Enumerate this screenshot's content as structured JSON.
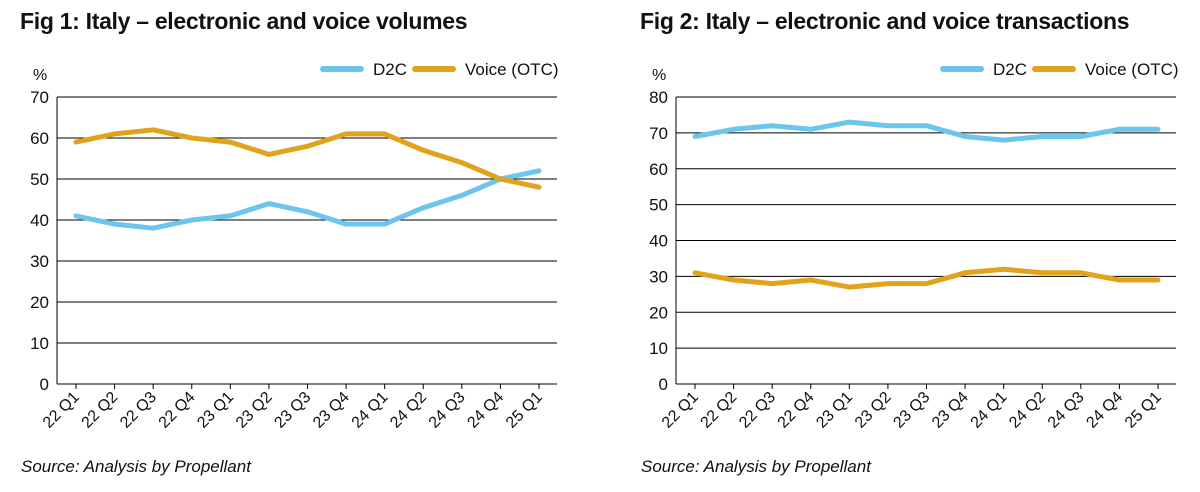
{
  "colors": {
    "d2c": "#6CC5EC",
    "voice": "#E0A31B",
    "grid": "#000000"
  },
  "chart_data": [
    {
      "type": "line",
      "title": "Fig 1: Italy – electronic and voice volumes",
      "source": "Source: Analysis by Propellant",
      "ylabel": "%",
      "ylim": [
        0,
        70
      ],
      "yticks": [
        "0",
        "10",
        "20",
        "30",
        "40",
        "50",
        "60",
        "70"
      ],
      "yticks_values": [
        0,
        10,
        20,
        30,
        40,
        50,
        60,
        70
      ],
      "categories": [
        "22 Q1",
        "22 Q2",
        "22 Q3",
        "22 Q4",
        "23 Q1",
        "23 Q2",
        "23 Q3",
        "23 Q4",
        "24 Q1",
        "24 Q2",
        "24 Q3",
        "24 Q4",
        "25 Q1"
      ],
      "legend_position": "top-right",
      "series": [
        {
          "name": "D2C",
          "color_key": "d2c",
          "values": [
            41,
            39,
            38,
            40,
            41,
            44,
            42,
            39,
            39,
            43,
            46,
            50,
            52
          ]
        },
        {
          "name": "Voice (OTC)",
          "color_key": "voice",
          "values": [
            59,
            61,
            62,
            60,
            59,
            56,
            58,
            61,
            61,
            57,
            54,
            50,
            48
          ]
        }
      ]
    },
    {
      "type": "line",
      "title": "Fig 2: Italy – electronic and voice transactions",
      "source": "Source: Analysis by Propellant",
      "ylabel": "%",
      "ylim": [
        0,
        80
      ],
      "yticks": [
        "0",
        "10",
        "20",
        "30",
        "40",
        "50",
        "60",
        "70",
        "80"
      ],
      "yticks_values": [
        0,
        10,
        20,
        30,
        40,
        50,
        60,
        70,
        80
      ],
      "categories": [
        "22 Q1",
        "22 Q2",
        "22 Q3",
        "22 Q4",
        "23 Q1",
        "23 Q2",
        "23 Q3",
        "23 Q4",
        "24 Q1",
        "24 Q2",
        "24 Q3",
        "24 Q4",
        "25 Q1"
      ],
      "legend_position": "top-right",
      "series": [
        {
          "name": "D2C",
          "color_key": "d2c",
          "values": [
            69,
            71,
            72,
            71,
            73,
            72,
            72,
            69,
            68,
            69,
            69,
            71,
            71
          ]
        },
        {
          "name": "Voice (OTC)",
          "color_key": "voice",
          "values": [
            31,
            29,
            28,
            29,
            27,
            28,
            28,
            31,
            32,
            31,
            31,
            29,
            29
          ]
        }
      ]
    }
  ]
}
